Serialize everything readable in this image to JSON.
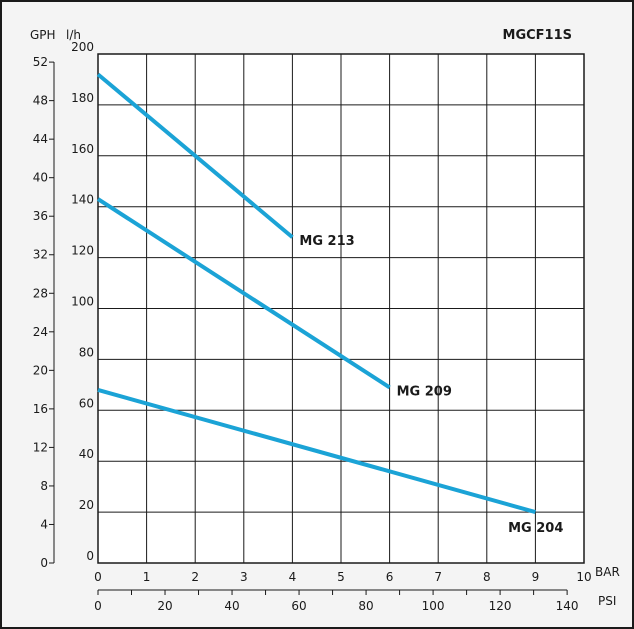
{
  "chart_data": {
    "type": "line",
    "title": "MGCF11S",
    "left_axis_gph": {
      "label": "GPH",
      "ticks": [
        "0",
        "4",
        "8",
        "12",
        "16",
        "20",
        "24",
        "28",
        "32",
        "36",
        "40",
        "44",
        "48",
        "52"
      ]
    },
    "left_axis_lh": {
      "label": "l/h",
      "range": [
        0,
        200
      ],
      "ticks": [
        "0",
        "20",
        "40",
        "60",
        "80",
        "100",
        "120",
        "140",
        "160",
        "180",
        "200"
      ]
    },
    "bottom_axis_bar": {
      "label": "BAR",
      "range": [
        0,
        10
      ],
      "ticks": [
        "0",
        "1",
        "2",
        "3",
        "4",
        "5",
        "6",
        "7",
        "8",
        "9",
        "10"
      ]
    },
    "bottom_axis_psi": {
      "label": "PSI",
      "range": [
        0,
        145
      ],
      "ticks": [
        "0",
        "20",
        "40",
        "60",
        "80",
        "100",
        "120",
        "140"
      ]
    },
    "grid": true,
    "series": [
      {
        "name": "MG 213",
        "points": [
          [
            0,
            192
          ],
          [
            4,
            128
          ]
        ]
      },
      {
        "name": "MG 209",
        "points": [
          [
            0,
            143
          ],
          [
            6,
            69
          ]
        ]
      },
      {
        "name": "MG 204",
        "points": [
          [
            0,
            68
          ],
          [
            9,
            20
          ]
        ]
      }
    ],
    "line_color": "#1ba3d6"
  }
}
